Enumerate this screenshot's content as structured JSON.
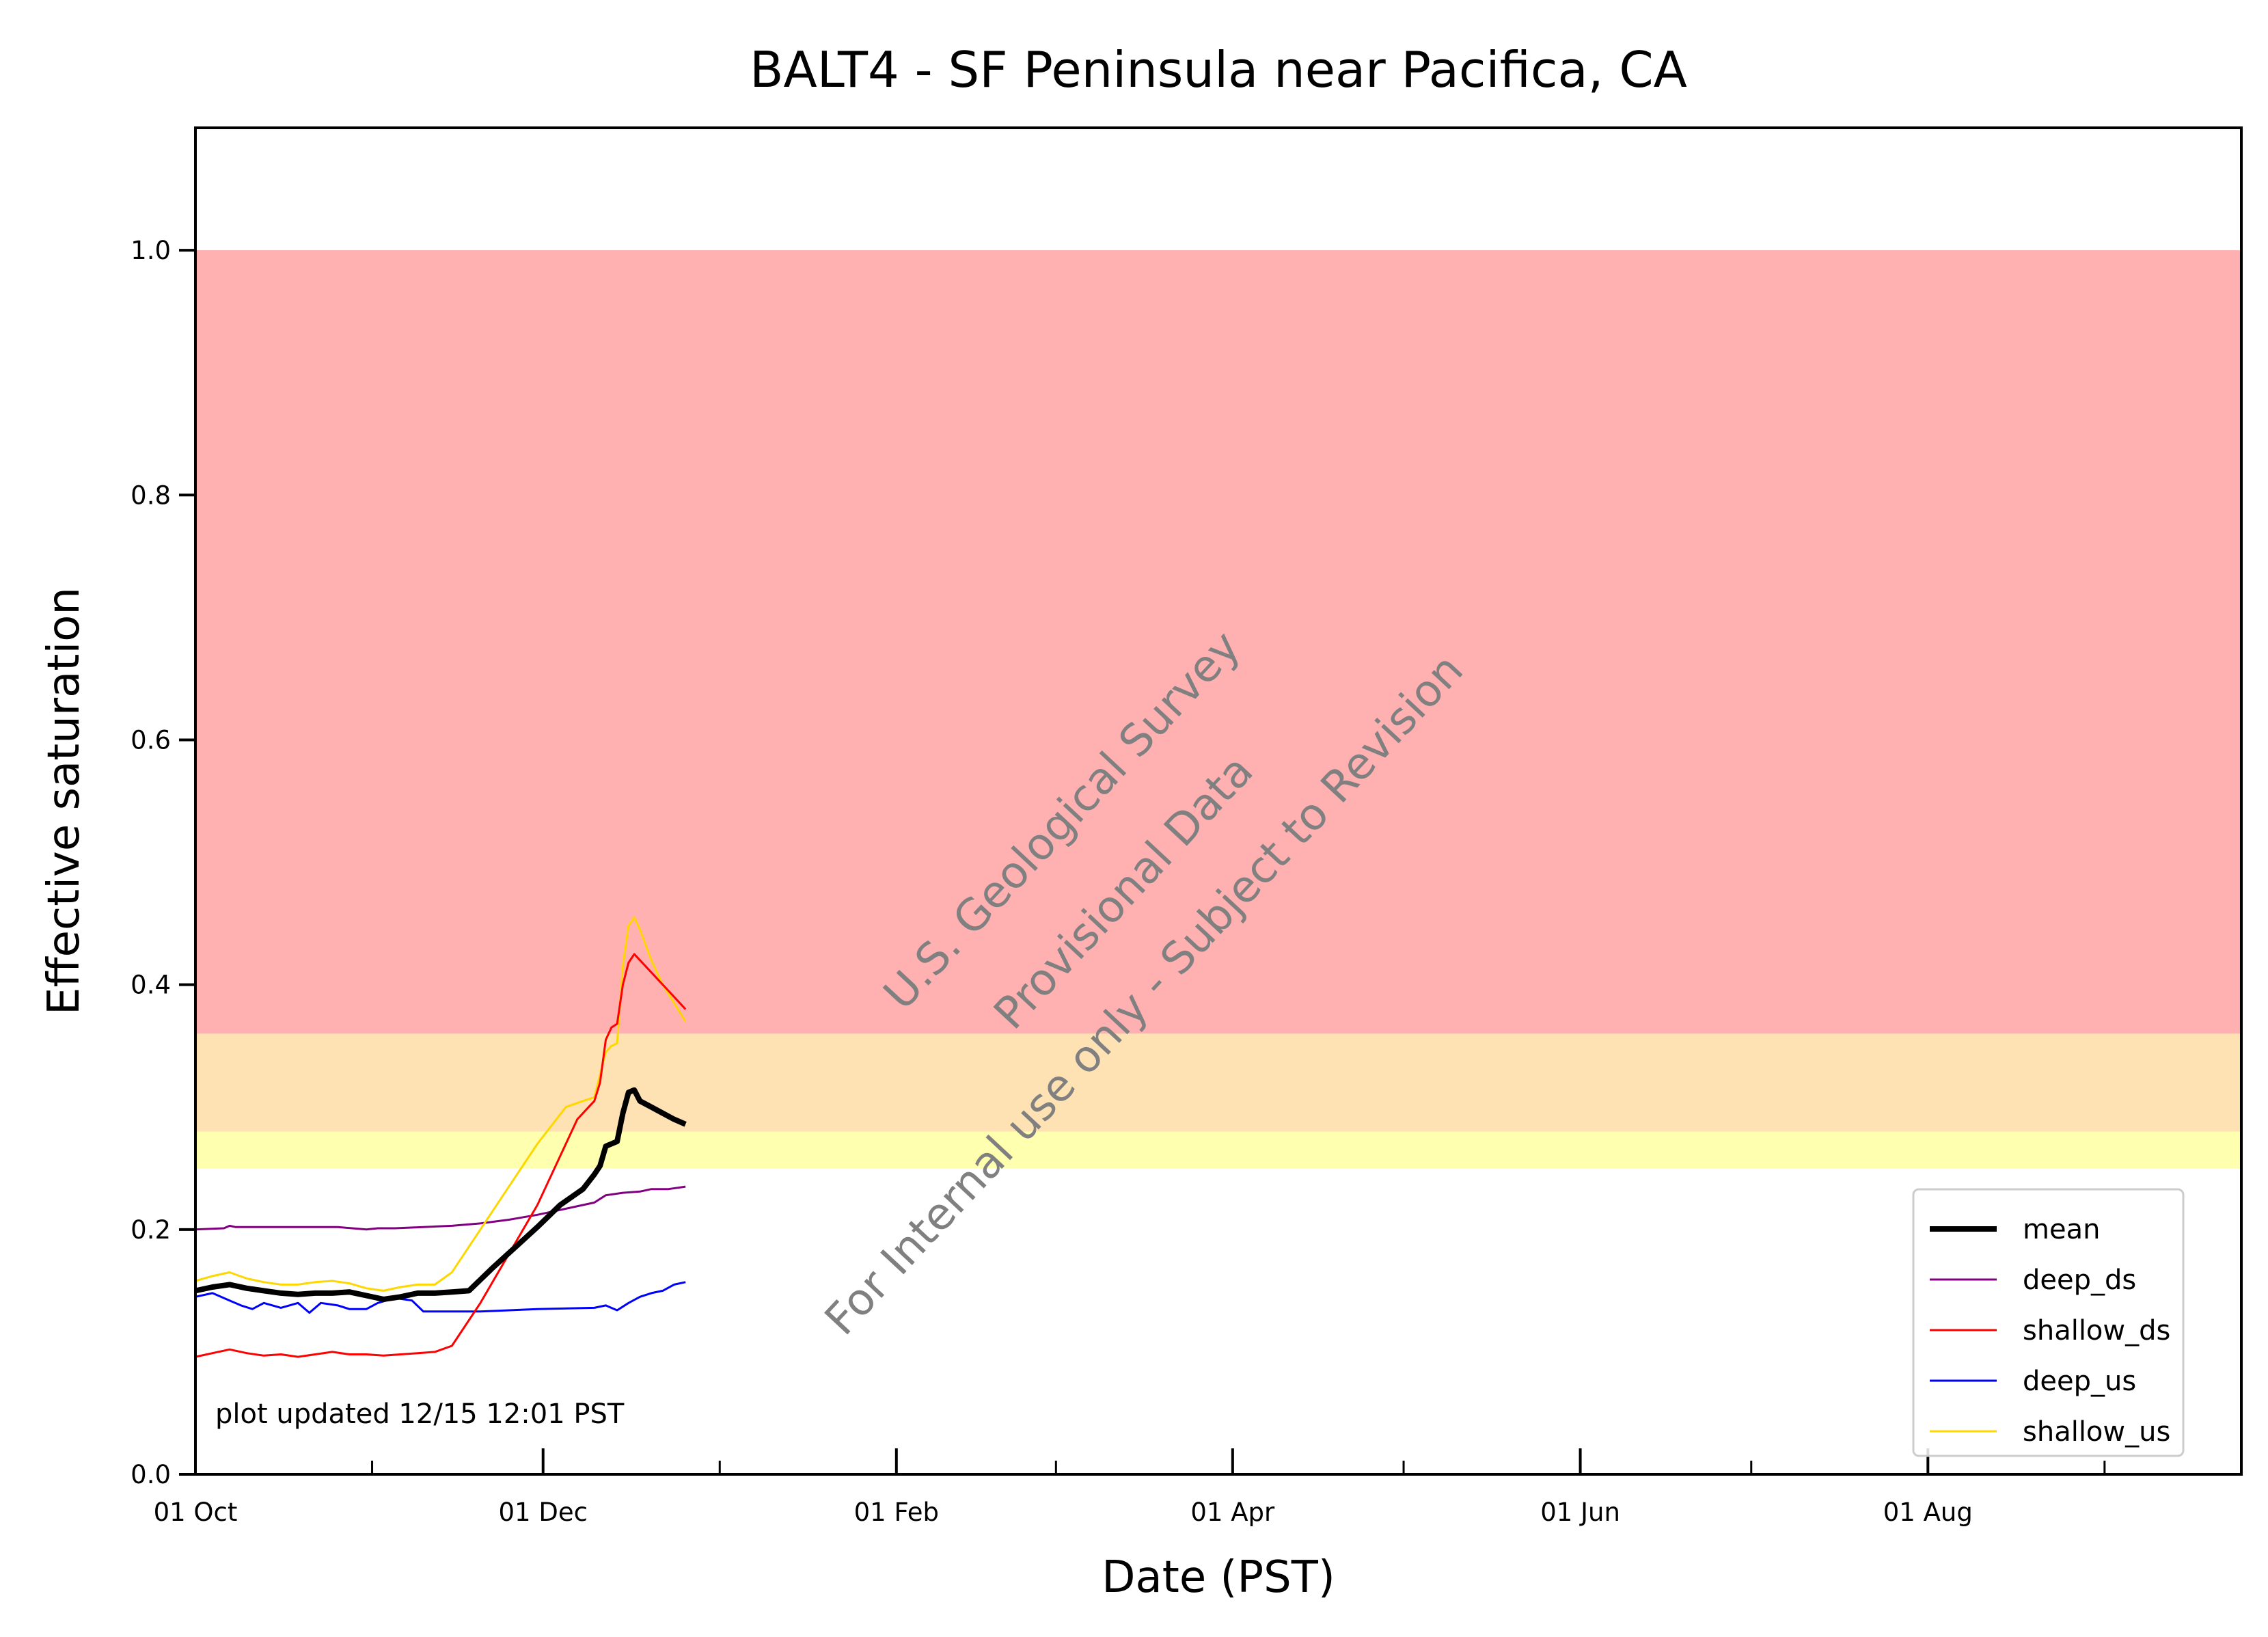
{
  "chart_data": {
    "type": "line",
    "title": "BALT4 - SF Peninsula near Pacifica, CA",
    "xlabel": "Date (PST)",
    "ylabel": "Effective saturation",
    "x_axis": {
      "start_date": "2024-10-01",
      "range_days": [
        0,
        359
      ],
      "major_ticks": [
        {
          "label": "01 Oct",
          "day": 0
        },
        {
          "label": "01 Dec",
          "day": 61
        },
        {
          "label": "01 Feb",
          "day": 123
        },
        {
          "label": "01 Apr",
          "day": 182
        },
        {
          "label": "01 Jun",
          "day": 243
        },
        {
          "label": "01 Aug",
          "day": 304
        }
      ],
      "minor_ticks_days": [
        31,
        92,
        151,
        212,
        273,
        335
      ]
    },
    "y_axis": {
      "ylim": [
        0.0,
        1.1
      ],
      "ticks": [
        0.0,
        0.2,
        0.4,
        0.6,
        0.8,
        1.0
      ],
      "tick_labels": [
        "0.0",
        "0.2",
        "0.4",
        "0.6",
        "0.8",
        "1.0"
      ]
    },
    "bands": [
      {
        "y0": 0.25,
        "y1": 0.28,
        "color": "#ffffb0"
      },
      {
        "y0": 0.28,
        "y1": 0.36,
        "color": "#ffe2b3"
      },
      {
        "y0": 0.36,
        "y1": 1.0,
        "color": "#ffb0b0"
      }
    ],
    "series": [
      {
        "name": "mean",
        "color": "#000000",
        "width": 8,
        "points": [
          [
            0,
            0.15
          ],
          [
            3,
            0.153
          ],
          [
            6,
            0.155
          ],
          [
            9,
            0.152
          ],
          [
            12,
            0.15
          ],
          [
            15,
            0.148
          ],
          [
            18,
            0.147
          ],
          [
            21,
            0.148
          ],
          [
            24,
            0.148
          ],
          [
            27,
            0.149
          ],
          [
            30,
            0.146
          ],
          [
            33,
            0.143
          ],
          [
            36,
            0.145
          ],
          [
            39,
            0.148
          ],
          [
            42,
            0.148
          ],
          [
            45,
            0.149
          ],
          [
            48,
            0.15
          ],
          [
            52,
            0.168
          ],
          [
            56,
            0.185
          ],
          [
            60,
            0.202
          ],
          [
            64,
            0.22
          ],
          [
            68,
            0.233
          ],
          [
            70,
            0.245
          ],
          [
            71,
            0.252
          ],
          [
            72,
            0.268
          ],
          [
            73,
            0.27
          ],
          [
            74,
            0.272
          ],
          [
            75,
            0.295
          ],
          [
            76,
            0.312
          ],
          [
            77,
            0.314
          ],
          [
            78,
            0.305
          ],
          [
            80,
            0.3
          ],
          [
            82,
            0.295
          ],
          [
            84,
            0.29
          ],
          [
            86,
            0.286
          ]
        ]
      },
      {
        "name": "deep_ds",
        "color": "#800080",
        "width": 3,
        "points": [
          [
            0,
            0.2
          ],
          [
            5,
            0.201
          ],
          [
            6,
            0.203
          ],
          [
            7,
            0.202
          ],
          [
            15,
            0.202
          ],
          [
            20,
            0.202
          ],
          [
            25,
            0.202
          ],
          [
            30,
            0.2
          ],
          [
            32,
            0.201
          ],
          [
            35,
            0.201
          ],
          [
            40,
            0.202
          ],
          [
            45,
            0.203
          ],
          [
            50,
            0.205
          ],
          [
            55,
            0.208
          ],
          [
            60,
            0.212
          ],
          [
            65,
            0.217
          ],
          [
            70,
            0.222
          ],
          [
            72,
            0.228
          ],
          [
            75,
            0.23
          ],
          [
            78,
            0.231
          ],
          [
            80,
            0.233
          ],
          [
            83,
            0.233
          ],
          [
            86,
            0.235
          ]
        ]
      },
      {
        "name": "shallow_ds",
        "color": "#ff0000",
        "width": 3,
        "points": [
          [
            0,
            0.096
          ],
          [
            3,
            0.099
          ],
          [
            6,
            0.102
          ],
          [
            9,
            0.099
          ],
          [
            12,
            0.097
          ],
          [
            15,
            0.098
          ],
          [
            18,
            0.096
          ],
          [
            21,
            0.098
          ],
          [
            24,
            0.1
          ],
          [
            27,
            0.098
          ],
          [
            30,
            0.098
          ],
          [
            33,
            0.097
          ],
          [
            36,
            0.098
          ],
          [
            39,
            0.099
          ],
          [
            42,
            0.1
          ],
          [
            45,
            0.105
          ],
          [
            50,
            0.14
          ],
          [
            55,
            0.18
          ],
          [
            60,
            0.22
          ],
          [
            65,
            0.27
          ],
          [
            67,
            0.29
          ],
          [
            69,
            0.3
          ],
          [
            70,
            0.305
          ],
          [
            71,
            0.32
          ],
          [
            72,
            0.355
          ],
          [
            73,
            0.365
          ],
          [
            74,
            0.368
          ],
          [
            75,
            0.4
          ],
          [
            76,
            0.418
          ],
          [
            77,
            0.425
          ],
          [
            78,
            0.42
          ],
          [
            80,
            0.41
          ],
          [
            82,
            0.4
          ],
          [
            84,
            0.39
          ],
          [
            86,
            0.38
          ]
        ]
      },
      {
        "name": "deep_us",
        "color": "#0000ff",
        "width": 3,
        "points": [
          [
            0,
            0.145
          ],
          [
            3,
            0.148
          ],
          [
            6,
            0.142
          ],
          [
            8,
            0.138
          ],
          [
            10,
            0.135
          ],
          [
            12,
            0.14
          ],
          [
            15,
            0.136
          ],
          [
            18,
            0.14
          ],
          [
            20,
            0.132
          ],
          [
            22,
            0.14
          ],
          [
            25,
            0.138
          ],
          [
            27,
            0.135
          ],
          [
            30,
            0.135
          ],
          [
            32,
            0.14
          ],
          [
            35,
            0.144
          ],
          [
            38,
            0.142
          ],
          [
            40,
            0.133
          ],
          [
            50,
            0.133
          ],
          [
            60,
            0.135
          ],
          [
            70,
            0.136
          ],
          [
            72,
            0.138
          ],
          [
            74,
            0.134
          ],
          [
            76,
            0.14
          ],
          [
            78,
            0.145
          ],
          [
            80,
            0.148
          ],
          [
            82,
            0.15
          ],
          [
            84,
            0.155
          ],
          [
            86,
            0.157
          ]
        ]
      },
      {
        "name": "shallow_us",
        "color": "#ffd700",
        "width": 3,
        "points": [
          [
            0,
            0.158
          ],
          [
            3,
            0.162
          ],
          [
            6,
            0.165
          ],
          [
            9,
            0.16
          ],
          [
            12,
            0.157
          ],
          [
            15,
            0.155
          ],
          [
            18,
            0.155
          ],
          [
            21,
            0.157
          ],
          [
            24,
            0.158
          ],
          [
            27,
            0.156
          ],
          [
            30,
            0.152
          ],
          [
            33,
            0.15
          ],
          [
            36,
            0.153
          ],
          [
            39,
            0.155
          ],
          [
            42,
            0.155
          ],
          [
            45,
            0.165
          ],
          [
            50,
            0.2
          ],
          [
            55,
            0.235
          ],
          [
            60,
            0.27
          ],
          [
            65,
            0.3
          ],
          [
            68,
            0.305
          ],
          [
            70,
            0.308
          ],
          [
            72,
            0.345
          ],
          [
            73,
            0.35
          ],
          [
            74,
            0.352
          ],
          [
            75,
            0.415
          ],
          [
            76,
            0.448
          ],
          [
            77,
            0.455
          ],
          [
            78,
            0.445
          ],
          [
            80,
            0.42
          ],
          [
            82,
            0.4
          ],
          [
            84,
            0.385
          ],
          [
            86,
            0.37
          ]
        ]
      }
    ],
    "legend": {
      "position": "lower-right",
      "entries": [
        "mean",
        "deep_ds",
        "shallow_ds",
        "deep_us",
        "shallow_us"
      ]
    },
    "annotations": {
      "updated": "plot updated 12/15 12:01  PST",
      "watermark": [
        "U.S. Geological Survey",
        "Provisional Data",
        "For Internal use only - Subject to Revision"
      ]
    },
    "grid": false
  }
}
